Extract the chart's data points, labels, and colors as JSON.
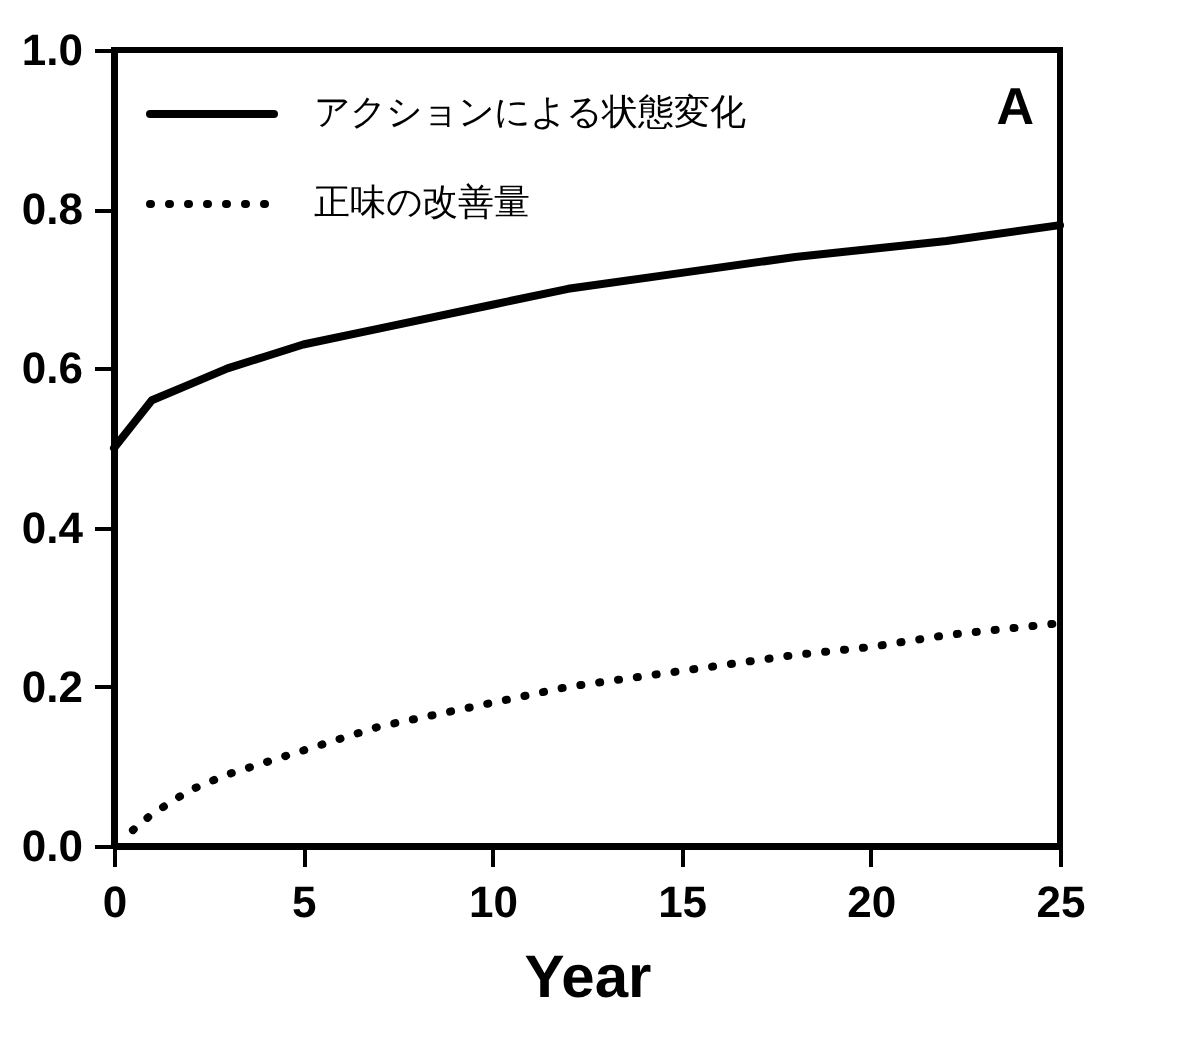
{
  "chart_data": {
    "type": "line",
    "xlabel": "Year",
    "annotations": [
      "A"
    ],
    "xlim": [
      0,
      25
    ],
    "xticks": [
      0,
      5,
      10,
      15,
      20,
      25
    ],
    "ylim": [
      0,
      1
    ],
    "yticks": [
      {
        "value": 0,
        "label": "0.0"
      },
      0.2,
      0.4,
      0.6,
      0.8,
      {
        "value": 1,
        "label": "1.0"
      }
    ],
    "grid": false,
    "legend": "top left",
    "marker": "none",
    "series": [
      {
        "name": "アクションによる状態変化",
        "color": "#000000",
        "line_style": "solid",
        "x": [
          0,
          0.5,
          1,
          2,
          3,
          4,
          5,
          7,
          10,
          12,
          15,
          18,
          20,
          22,
          25
        ],
        "values": [
          0.5,
          0.53,
          0.56,
          0.58,
          0.6,
          0.615,
          0.63,
          0.65,
          0.68,
          0.7,
          0.72,
          0.74,
          0.75,
          0.76,
          0.78
        ]
      },
      {
        "name": "正味の改善量",
        "color": "#000000",
        "line_style": "dotted",
        "x": [
          0.5,
          1,
          2,
          3,
          4,
          5,
          7,
          10,
          12,
          15,
          18,
          20,
          22,
          25
        ],
        "values": [
          0.02,
          0.04,
          0.07,
          0.09,
          0.105,
          0.12,
          0.15,
          0.18,
          0.2,
          0.22,
          0.24,
          0.25,
          0.265,
          0.28
        ]
      }
    ]
  }
}
